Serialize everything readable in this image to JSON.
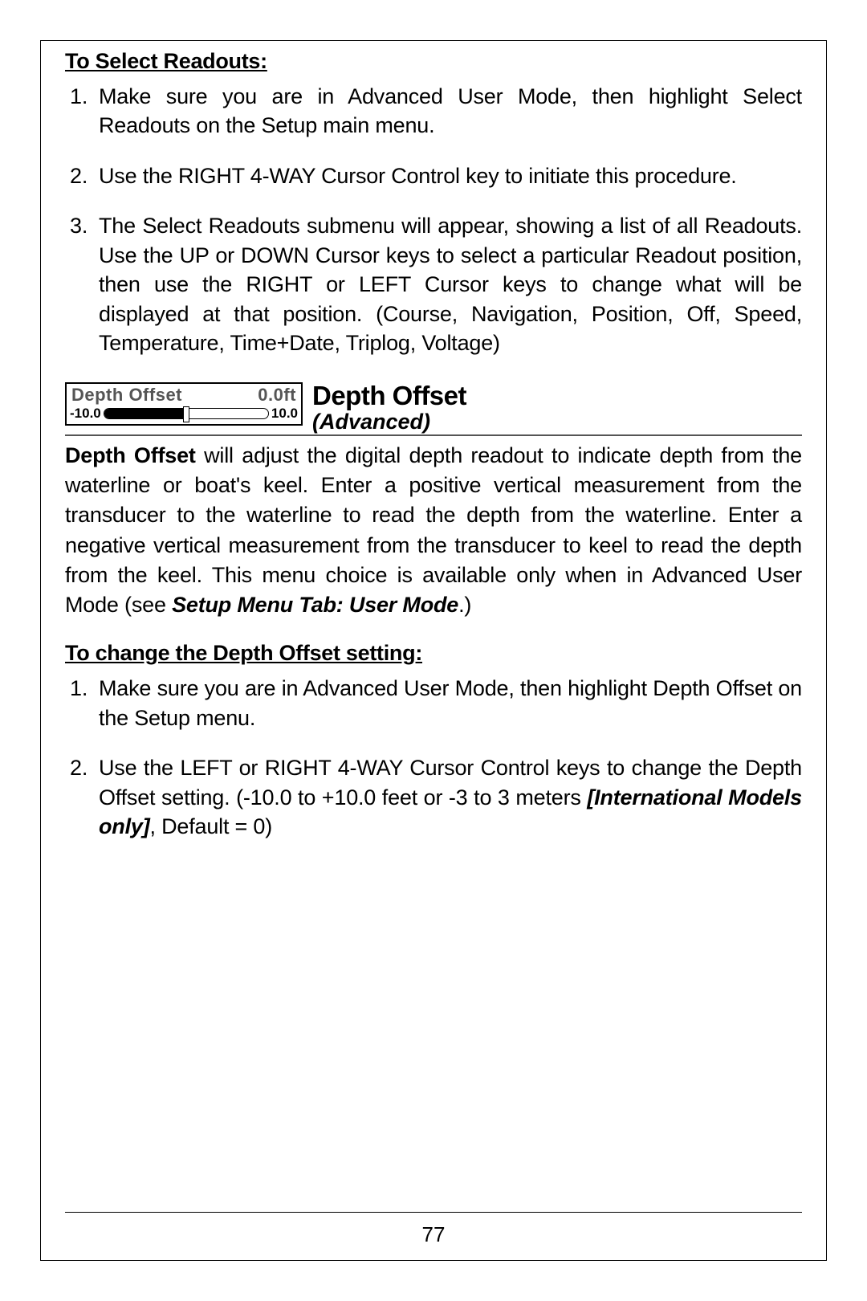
{
  "section1": {
    "heading": "To Select Readouts:",
    "steps": [
      "Make sure you are in Advanced User Mode, then highlight Select Readouts on the Setup main menu.",
      "Use the RIGHT 4-WAY Cursor Control key to initiate this procedure.",
      "The Select Readouts submenu will appear, showing a list of all Readouts. Use the UP or DOWN Cursor keys to select a particular Readout position, then use the RIGHT or LEFT Cursor keys to change what will be displayed at that position. (Course, Navigation, Position, Off, Speed, Temperature, Time+Date, Triplog, Voltage)"
    ]
  },
  "widget": {
    "label": "Depth Offset",
    "value": "0.0ft",
    "min_label": "-10.0",
    "max_label": "10.0",
    "fill_percent": 50,
    "thumb_percent": 50,
    "border_color": "#000000",
    "label_color": "#555555",
    "background_color": "#ffffff"
  },
  "feature": {
    "title": "Depth Offset",
    "subtitle": "(Advanced)"
  },
  "body": {
    "lead_bold": "Depth Offset",
    "para_rest_a": " will adjust the digital depth readout to indicate depth from the waterline or boat's keel. Enter a positive vertical measurement from the transducer to the waterline to read the depth from the waterline. Enter a negative vertical measurement from the transducer to keel to read the depth from the keel. This menu choice is available only when in Advanced User Mode (see ",
    "para_ital": "Setup Menu Tab: User Mode",
    "para_rest_b": ".)"
  },
  "section2": {
    "heading": "To change the Depth Offset setting:",
    "step1": "Make sure you are in Advanced User Mode, then highlight Depth Offset on the Setup menu.",
    "step2_a": "Use the LEFT or RIGHT 4-WAY Cursor Control keys to change the Depth Offset setting. (-10.0 to +10.0 feet or -3 to 3 meters ",
    "step2_ital": "[International Models only]",
    "step2_b": ", Default = 0)"
  },
  "page_number": "77"
}
